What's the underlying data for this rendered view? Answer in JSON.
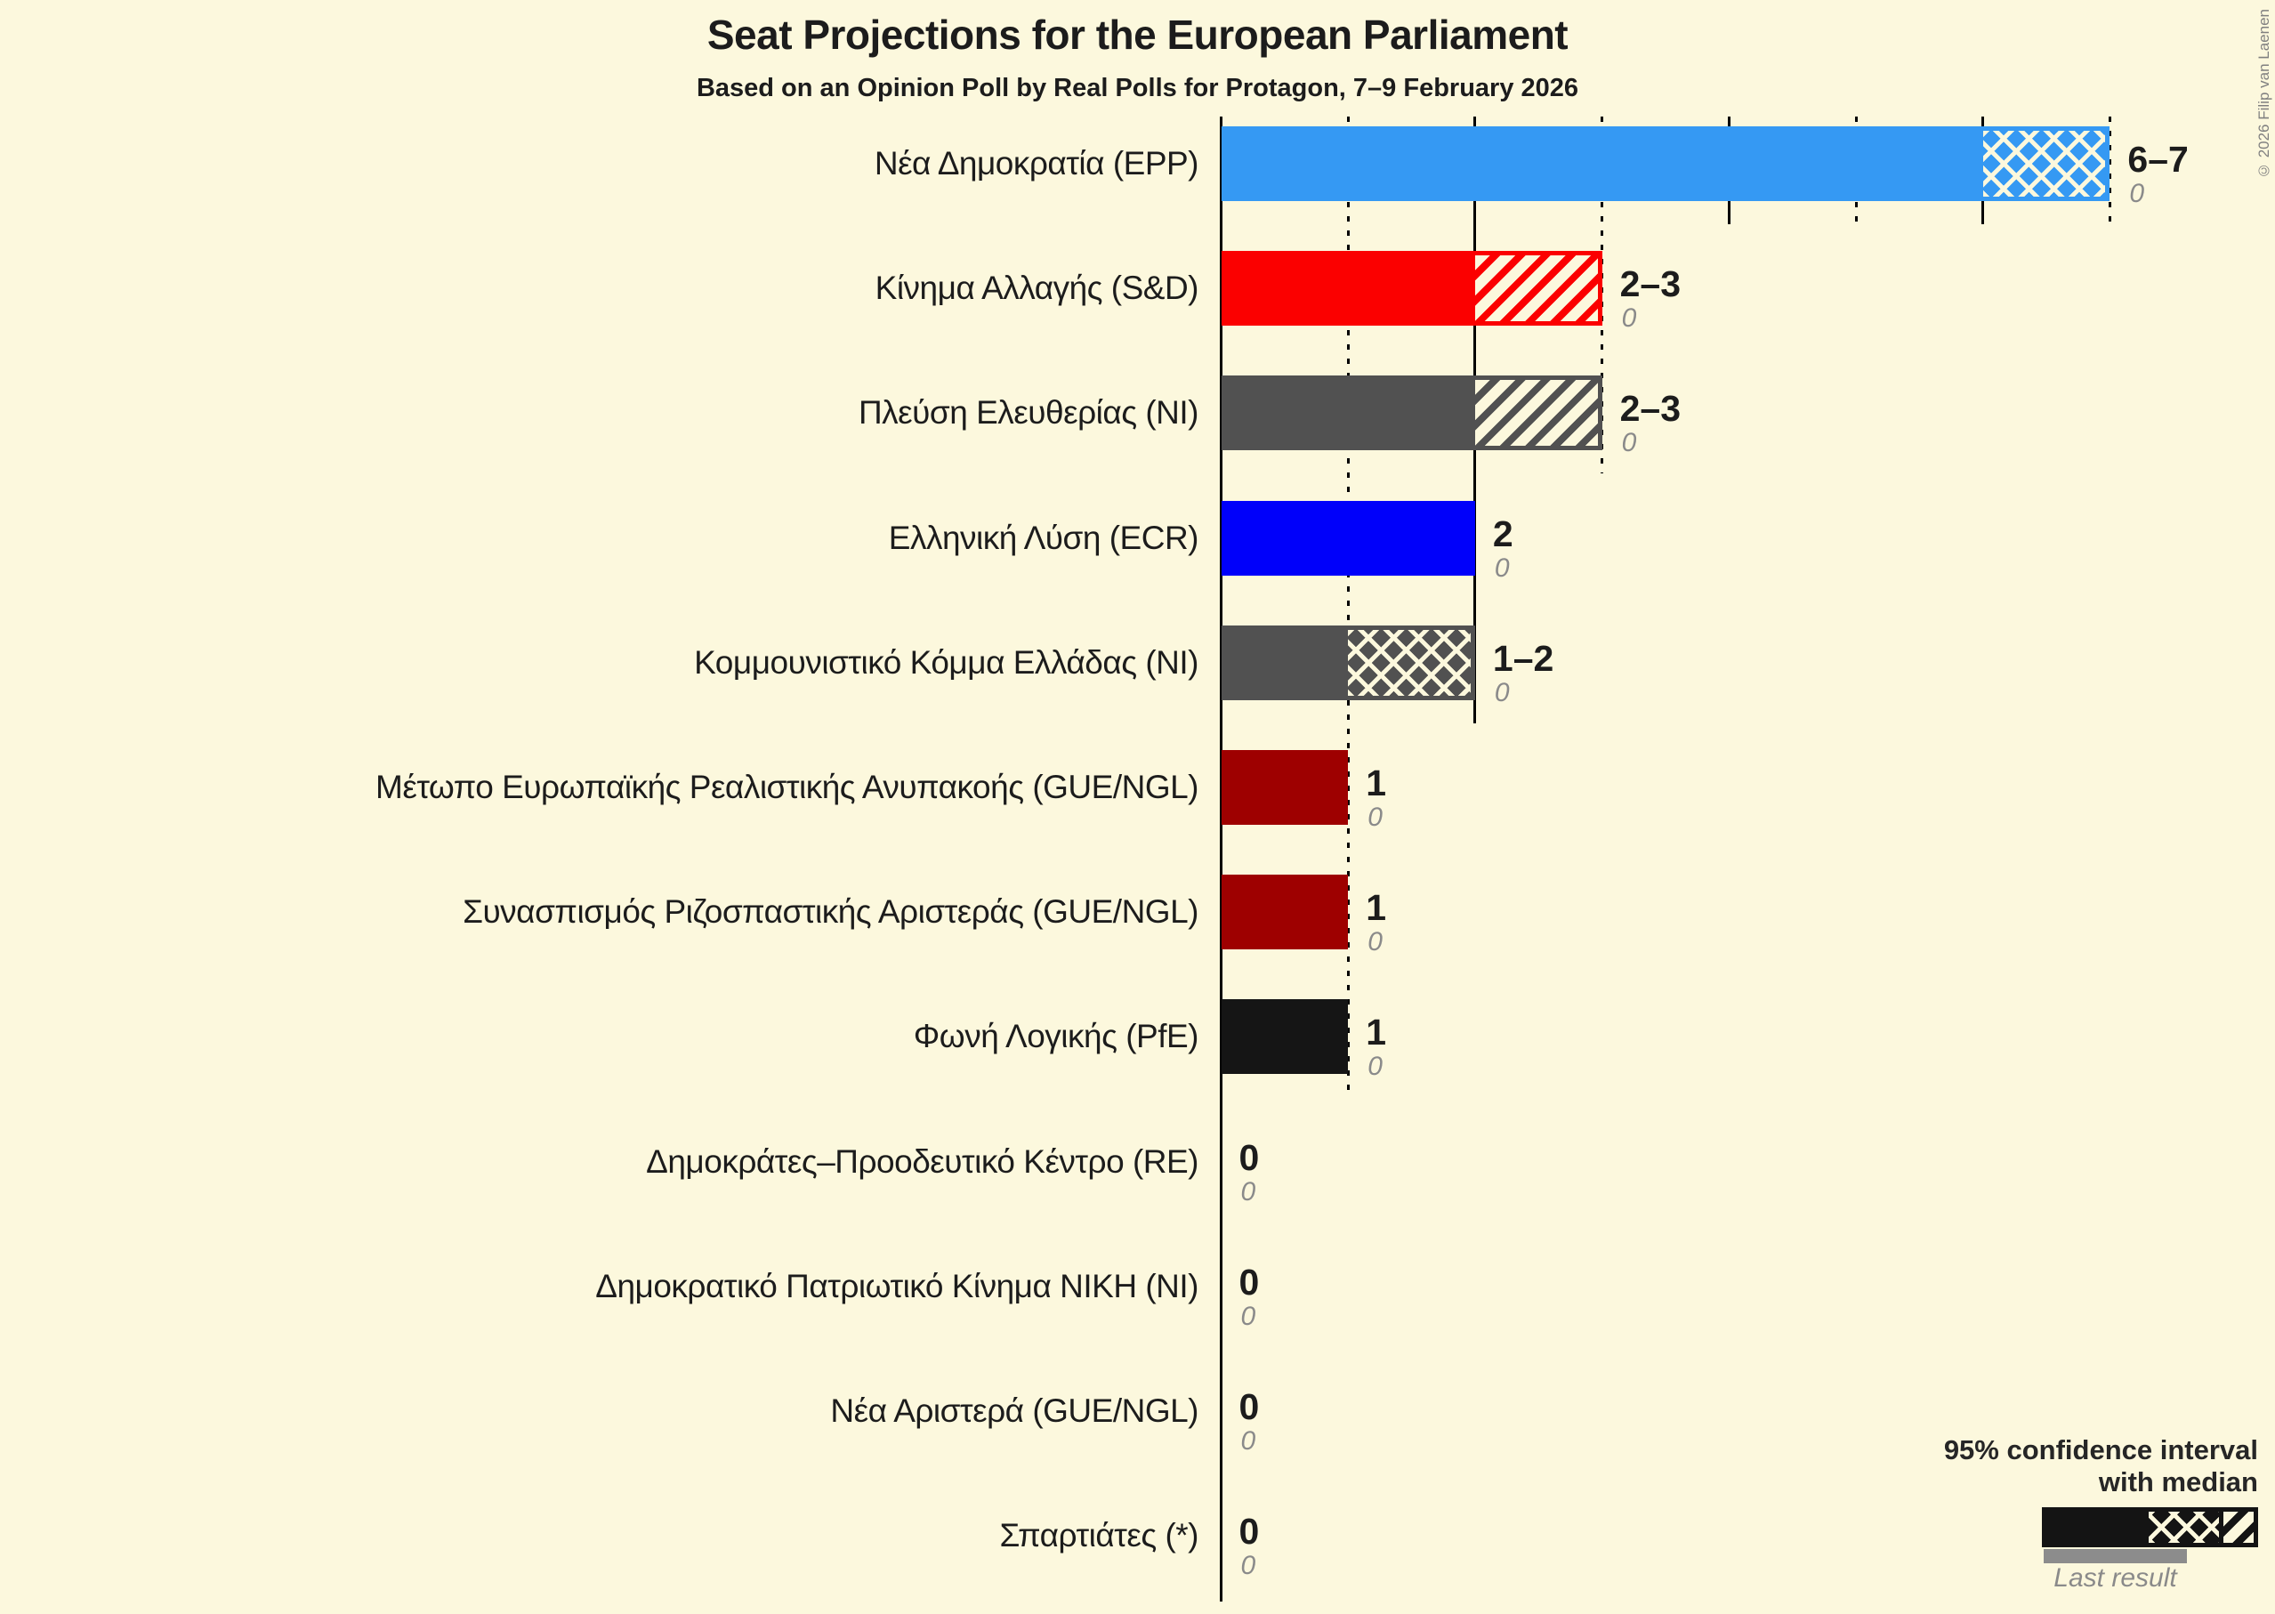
{
  "title": "Seat Projections for the European Parliament",
  "subtitle": "Based on an Opinion Poll by Real Polls for Protagon, 7–9 February 2026",
  "copyright": "© 2026 Filip van Laenen",
  "legend": {
    "ci_line1": "95% confidence interval",
    "ci_line2": "with median",
    "last_result": "Last result"
  },
  "colors": {
    "background": "#FCF8DD",
    "axis": "#000000",
    "value_label": "#1C1C1C",
    "last_result_label": "#8A8A8A",
    "legend_sample": "#141414",
    "legend_last_result_bar": "#8C8C8C"
  },
  "chart_data": {
    "type": "bar",
    "orientation": "horizontal",
    "title": "Seat Projections for the European Parliament",
    "xlabel": "",
    "ylabel": "",
    "x_axis": {
      "min": 0,
      "max": 7,
      "ticks": [
        {
          "value": 0,
          "style": "solid"
        },
        {
          "value": 1,
          "style": "dotted"
        },
        {
          "value": 2,
          "style": "solid"
        },
        {
          "value": 3,
          "style": "dotted"
        },
        {
          "value": 4,
          "style": "solid"
        },
        {
          "value": 5,
          "style": "dotted"
        },
        {
          "value": 6,
          "style": "solid"
        },
        {
          "value": 7,
          "style": "dotted"
        }
      ]
    },
    "series": [
      {
        "party": "Νέα Δημοκρατία (EPP)",
        "color": "#3599F3",
        "ci_low": 6,
        "median": 7,
        "ci_high": 7,
        "seats_label": "6–7",
        "last_result": 0,
        "last_result_label": "0"
      },
      {
        "party": "Κίνημα Αλλαγής (S&D)",
        "color": "#FB0000",
        "ci_low": 2,
        "median": 2,
        "ci_high": 3,
        "seats_label": "2–3",
        "last_result": 0,
        "last_result_label": "0"
      },
      {
        "party": "Πλεύση Ελευθερίας (NI)",
        "color": "#515151",
        "ci_low": 2,
        "median": 2,
        "ci_high": 3,
        "seats_label": "2–3",
        "last_result": 0,
        "last_result_label": "0"
      },
      {
        "party": "Ελληνική Λύση (ECR)",
        "color": "#0000FA",
        "ci_low": 2,
        "median": 2,
        "ci_high": 2,
        "seats_label": "2",
        "last_result": 0,
        "last_result_label": "0"
      },
      {
        "party": "Κομμουνιστικό Κόμμα Ελλάδας (NI)",
        "color": "#515151",
        "ci_low": 1,
        "median": 2,
        "ci_high": 2,
        "seats_label": "1–2",
        "last_result": 0,
        "last_result_label": "0"
      },
      {
        "party": "Μέτωπο Ευρωπαϊκής Ρεαλιστικής Ανυπακοής (GUE/NGL)",
        "color": "#9E0000",
        "ci_low": 1,
        "median": 1,
        "ci_high": 1,
        "seats_label": "1",
        "last_result": 0,
        "last_result_label": "0"
      },
      {
        "party": "Συνασπισμός Ριζοσπαστικής Αριστεράς (GUE/NGL)",
        "color": "#9E0000",
        "ci_low": 1,
        "median": 1,
        "ci_high": 1,
        "seats_label": "1",
        "last_result": 0,
        "last_result_label": "0"
      },
      {
        "party": "Φωνή Λογικής (PfE)",
        "color": "#151515",
        "ci_low": 1,
        "median": 1,
        "ci_high": 1,
        "seats_label": "1",
        "last_result": 0,
        "last_result_label": "0"
      },
      {
        "party": "Δημοκράτες–Προοδευτικό Κέντρο (RE)",
        "color": null,
        "ci_low": 0,
        "median": 0,
        "ci_high": 0,
        "seats_label": "0",
        "last_result": 0,
        "last_result_label": "0"
      },
      {
        "party": "Δημοκρατικό Πατριωτικό Κίνημα ΝΙΚΗ (NI)",
        "color": null,
        "ci_low": 0,
        "median": 0,
        "ci_high": 0,
        "seats_label": "0",
        "last_result": 0,
        "last_result_label": "0"
      },
      {
        "party": "Νέα Αριστερά (GUE/NGL)",
        "color": null,
        "ci_low": 0,
        "median": 0,
        "ci_high": 0,
        "seats_label": "0",
        "last_result": 0,
        "last_result_label": "0"
      },
      {
        "party": "Σπαρτιάτες (*)",
        "color": null,
        "ci_low": 0,
        "median": 0,
        "ci_high": 0,
        "seats_label": "0",
        "last_result": 0,
        "last_result_label": "0"
      }
    ],
    "legend_position": "bottom-right",
    "grid": "vertical ticks, solid at even seats, dotted at odd seats"
  }
}
